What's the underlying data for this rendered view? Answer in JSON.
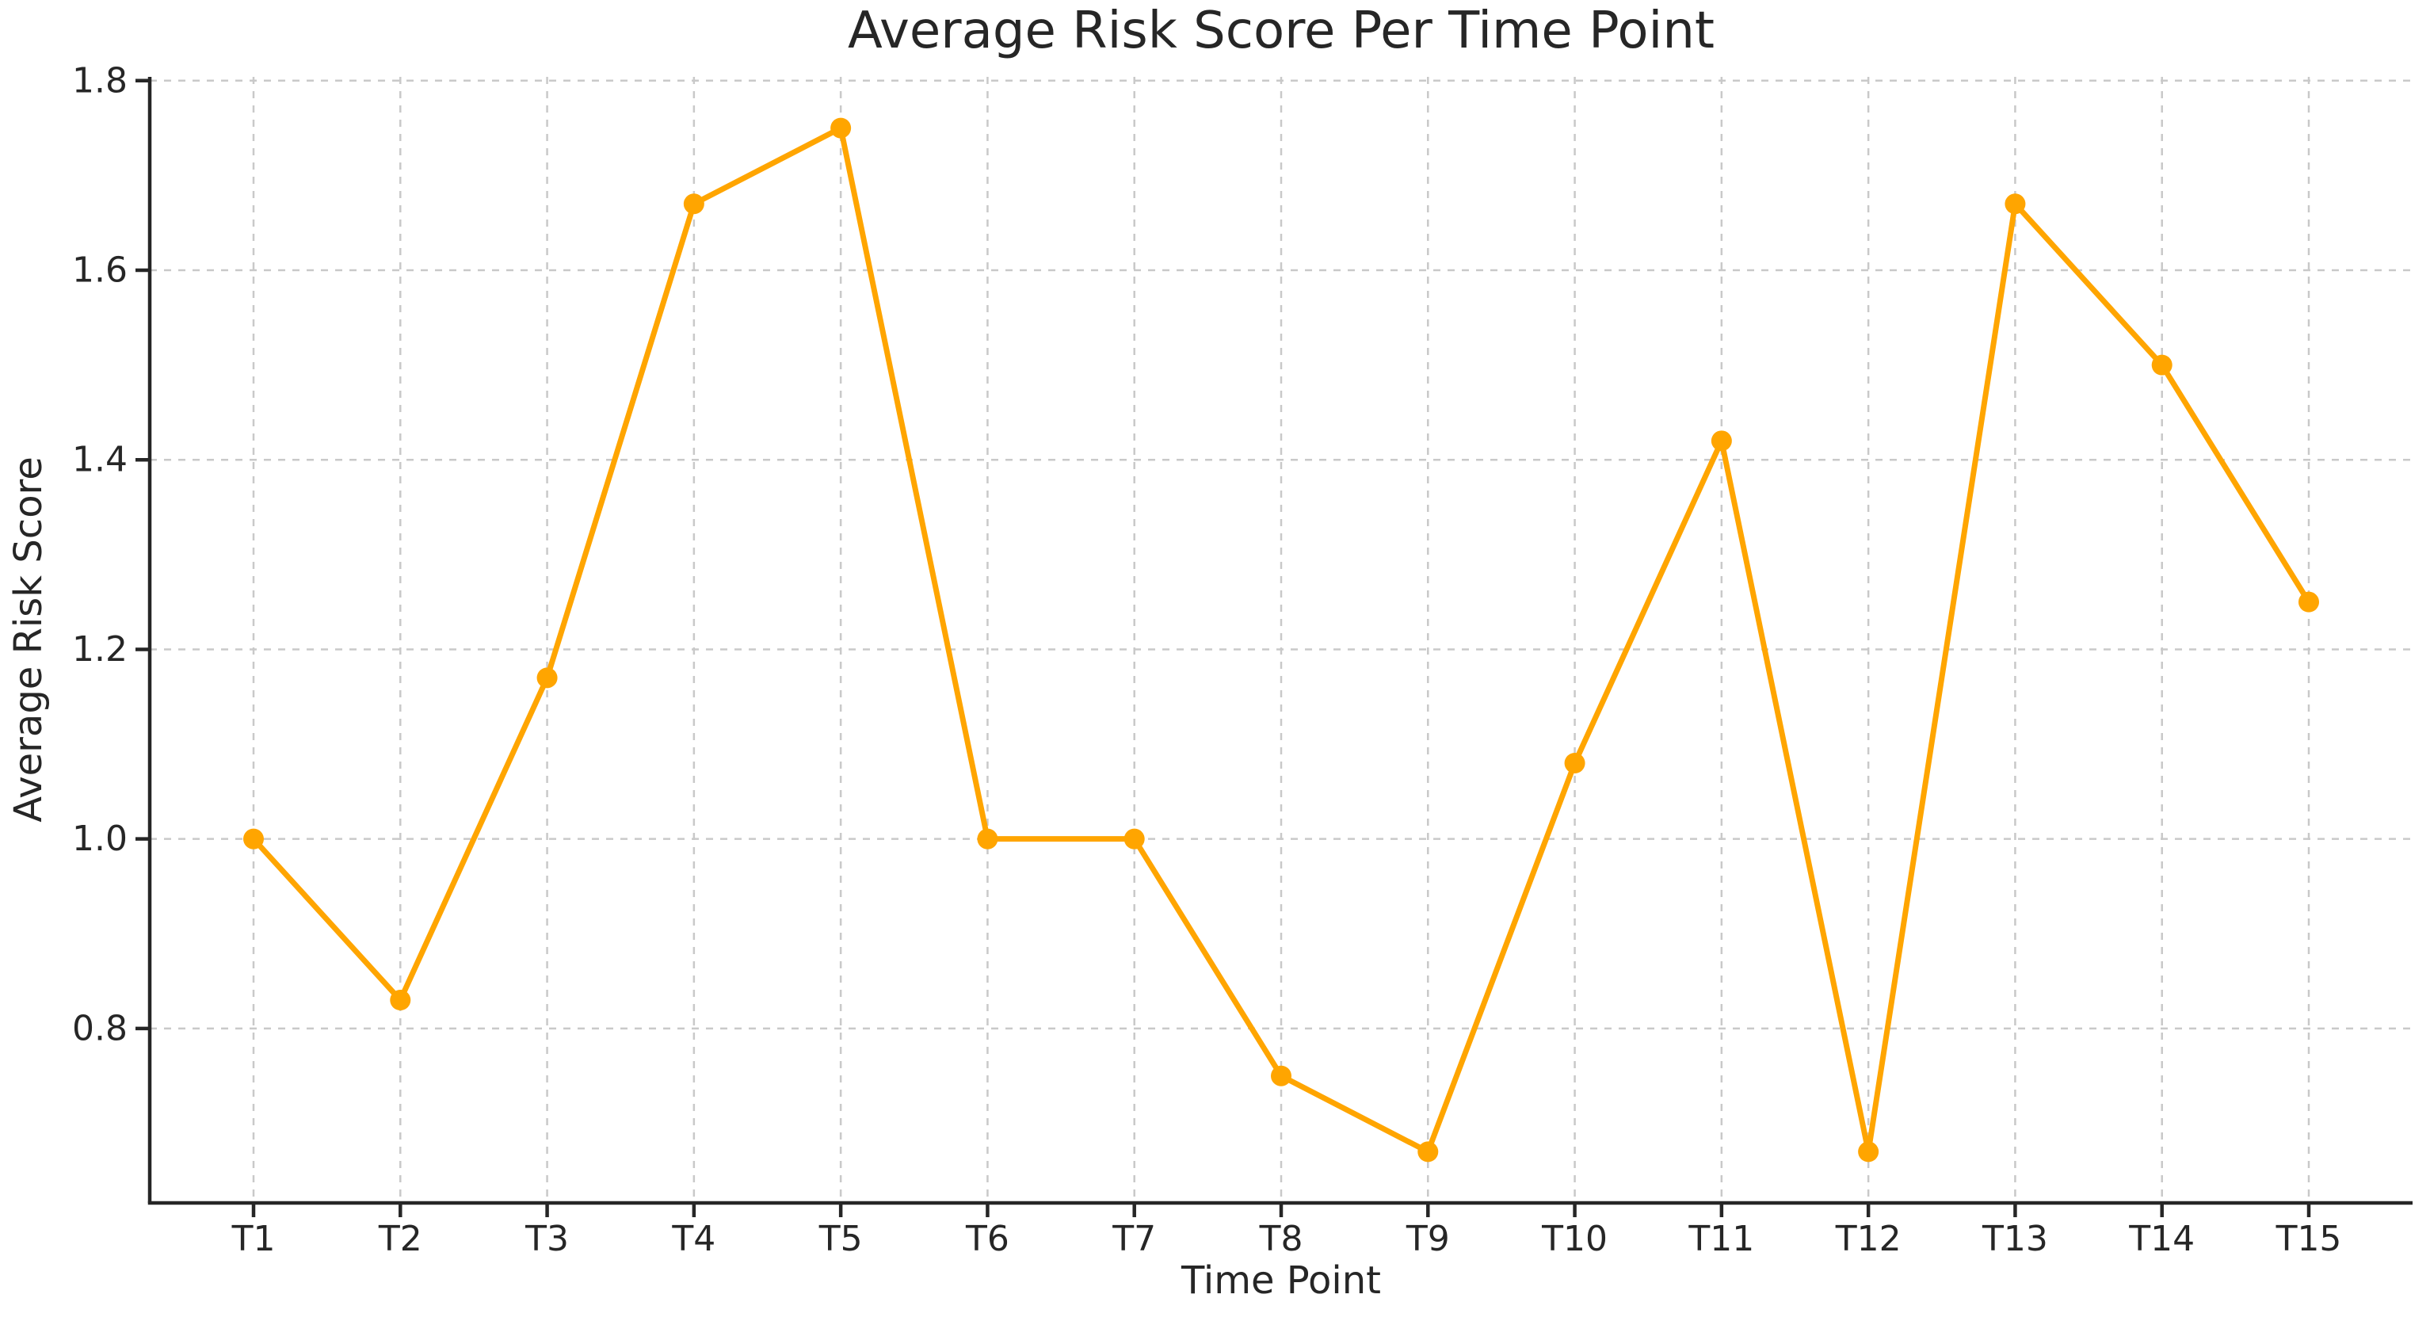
{
  "chart_data": {
    "type": "line",
    "title": "Average Risk Score Per Time Point",
    "xlabel": "Time Point",
    "ylabel": "Average Risk Score",
    "categories": [
      "T1",
      "T2",
      "T3",
      "T4",
      "T5",
      "T6",
      "T7",
      "T8",
      "T9",
      "T10",
      "T11",
      "T12",
      "T13",
      "T14",
      "T15"
    ],
    "series": [
      {
        "name": "Average Risk Score",
        "values": [
          1.0,
          0.83,
          1.17,
          1.67,
          1.75,
          1.0,
          1.0,
          0.75,
          0.67,
          1.08,
          1.42,
          0.67,
          1.67,
          1.5,
          1.25
        ]
      }
    ],
    "yticks": [
      0.8,
      1.0,
      1.2,
      1.4,
      1.6,
      1.8
    ],
    "ylim": [
      0.616,
      1.804
    ],
    "grid": "dashed-both-axes",
    "legend": "none",
    "marker": "circle",
    "colors": {
      "line": "#FFA500",
      "marker": "#FFA500",
      "grid": "#c9c9c9",
      "spine": "#262626",
      "text": "#262626",
      "background": "#ffffff"
    }
  }
}
